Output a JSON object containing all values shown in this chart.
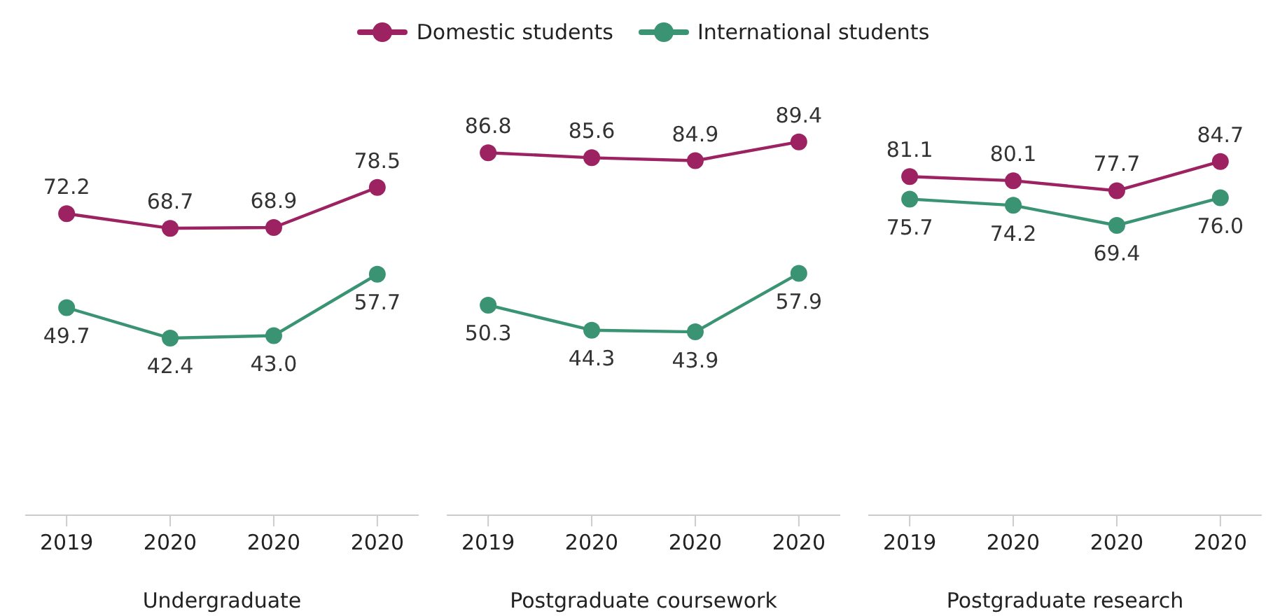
{
  "chart_data": [
    {
      "type": "line",
      "categories": [
        "2019",
        "2020",
        "2020",
        "2020"
      ],
      "xlabel": "Undergraduate",
      "legend": "top",
      "marker": "circle",
      "series": [
        {
          "name": "Domestic students",
          "color": "#9c2262",
          "values": [
            72.2,
            68.7,
            68.9,
            78.5
          ],
          "value_labels": [
            "72.2",
            "68.7",
            "68.9",
            "78.5"
          ]
        },
        {
          "name": "International students",
          "color": "#3a9473",
          "values": [
            49.7,
            42.4,
            43.0,
            57.7
          ],
          "value_labels": [
            "49.7",
            "42.4",
            "43.0",
            "57.7"
          ]
        }
      ]
    },
    {
      "type": "line",
      "categories": [
        "2019",
        "2020",
        "2020",
        "2020"
      ],
      "xlabel": "Postgraduate coursework",
      "marker": "circle",
      "series": [
        {
          "color": "#9c2262",
          "values": [
            86.8,
            85.6,
            84.9,
            89.4
          ],
          "value_labels": [
            "86.8",
            "85.6",
            "84.9",
            "89.4"
          ]
        },
        {
          "color": "#3a9473",
          "values": [
            50.3,
            44.3,
            43.9,
            57.9
          ],
          "value_labels": [
            "50.3",
            "44.3",
            "43.9",
            "57.9"
          ]
        }
      ]
    },
    {
      "type": "line",
      "categories": [
        "2019",
        "2020",
        "2020",
        "2020"
      ],
      "xlabel": "Postgraduate research",
      "marker": "circle",
      "series": [
        {
          "color": "#9c2262",
          "values": [
            81.1,
            80.1,
            77.7,
            84.7
          ],
          "value_labels": [
            "81.1",
            "80.1",
            "77.7",
            "84.7"
          ]
        },
        {
          "color": "#3a9473",
          "values": [
            75.7,
            74.2,
            69.4,
            76.0
          ],
          "value_labels": [
            "75.7",
            "74.2",
            "69.4",
            "76.0"
          ]
        }
      ]
    }
  ]
}
